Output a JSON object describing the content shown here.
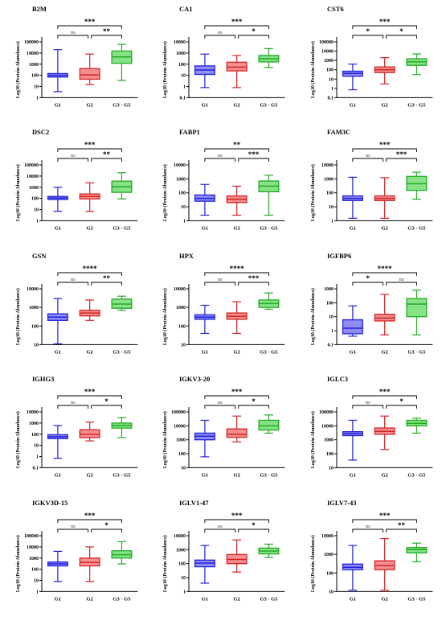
{
  "figure": {
    "ylabel": "Log10 (Protein Abundance)",
    "group_colors": {
      "G1": "#2222dd",
      "G2": "#d42222",
      "G3 - G5": "#22aa22"
    },
    "group_fills": {
      "G1": "#8c8cf2",
      "G2": "#f49090",
      "G3 - G5": "#86e286"
    }
  },
  "chart_data": [
    {
      "type": "box",
      "title": "B2M",
      "categories": [
        "G1",
        "G2",
        "G3 - G5"
      ],
      "yscale": "log",
      "ylim": [
        1,
        100000
      ],
      "yticks": [
        "1",
        "10",
        "100",
        "1000",
        "10000",
        "100000"
      ],
      "boxes": [
        {
          "min": 3.5,
          "q1": 70,
          "median": 100,
          "q3": 145,
          "max": 20000
        },
        {
          "min": 15,
          "q1": 45,
          "median": 110,
          "q3": 400,
          "max": 8000
        },
        {
          "min": 35,
          "q1": 1200,
          "median": 4500,
          "q3": 15000,
          "max": 60000
        }
      ],
      "brackets": [
        {
          "from": 0,
          "to": 2,
          "label": "***"
        },
        {
          "from": 0,
          "to": 1,
          "label": "ns"
        },
        {
          "from": 1,
          "to": 2,
          "label": "**"
        }
      ]
    },
    {
      "type": "box",
      "title": "CA1",
      "categories": [
        "G1",
        "G2",
        "G3 - G5"
      ],
      "yscale": "log",
      "ylim": [
        0.1,
        10000
      ],
      "yticks": [
        "0.1",
        "1",
        "10",
        "100",
        "1000",
        "10000"
      ],
      "boxes": [
        {
          "min": 0.8,
          "q1": 12,
          "median": 30,
          "q3": 70,
          "max": 800
        },
        {
          "min": 0.8,
          "q1": 25,
          "median": 55,
          "q3": 150,
          "max": 600
        },
        {
          "min": 50,
          "q1": 160,
          "median": 300,
          "q3": 600,
          "max": 2500
        }
      ],
      "brackets": [
        {
          "from": 0,
          "to": 2,
          "label": "***"
        },
        {
          "from": 0,
          "to": 1,
          "label": "ns"
        },
        {
          "from": 1,
          "to": 2,
          "label": "*"
        }
      ]
    },
    {
      "type": "box",
      "title": "CST6",
      "categories": [
        "G1",
        "G2",
        "G3 - G5"
      ],
      "yscale": "log",
      "ylim": [
        0.1,
        100000
      ],
      "yticks": [
        "0.1",
        "1",
        "10",
        "100",
        "1000",
        "10000",
        "100000"
      ],
      "boxes": [
        {
          "min": 0.7,
          "q1": 20,
          "median": 40,
          "q3": 70,
          "max": 400
        },
        {
          "min": 3,
          "q1": 50,
          "median": 100,
          "q3": 200,
          "max": 2000
        },
        {
          "min": 30,
          "q1": 300,
          "median": 700,
          "q3": 1500,
          "max": 5000
        }
      ],
      "brackets": [
        {
          "from": 0,
          "to": 2,
          "label": "***"
        },
        {
          "from": 0,
          "to": 1,
          "label": "*"
        },
        {
          "from": 1,
          "to": 2,
          "label": "*"
        }
      ]
    },
    {
      "type": "box",
      "title": "DSC2",
      "categories": [
        "G1",
        "G2",
        "G3 - G5"
      ],
      "yscale": "log",
      "ylim": [
        1,
        100000
      ],
      "yticks": [
        "1",
        "10",
        "100",
        "1000",
        "10000",
        "100000"
      ],
      "boxes": [
        {
          "min": 7,
          "q1": 80,
          "median": 110,
          "q3": 150,
          "max": 1000
        },
        {
          "min": 7,
          "q1": 90,
          "median": 150,
          "q3": 250,
          "max": 2500
        },
        {
          "min": 90,
          "q1": 350,
          "median": 1100,
          "q3": 3500,
          "max": 20000
        }
      ],
      "brackets": [
        {
          "from": 0,
          "to": 2,
          "label": "***"
        },
        {
          "from": 0,
          "to": 1,
          "label": "ns"
        },
        {
          "from": 1,
          "to": 2,
          "label": "**"
        }
      ]
    },
    {
      "type": "box",
      "title": "FABP1",
      "categories": [
        "G1",
        "G2",
        "G3 - G5"
      ],
      "yscale": "log",
      "ylim": [
        1,
        10000
      ],
      "yticks": [
        "1",
        "10",
        "100",
        "1000",
        "10000"
      ],
      "boxes": [
        {
          "min": 2.5,
          "q1": 25,
          "median": 40,
          "q3": 70,
          "max": 400
        },
        {
          "min": 2.5,
          "q1": 20,
          "median": 35,
          "q3": 60,
          "max": 300
        },
        {
          "min": 2.5,
          "q1": 120,
          "median": 300,
          "q3": 700,
          "max": 1800
        }
      ],
      "brackets": [
        {
          "from": 0,
          "to": 2,
          "label": "**"
        },
        {
          "from": 0,
          "to": 1,
          "label": "ns"
        },
        {
          "from": 1,
          "to": 2,
          "label": "***"
        }
      ]
    },
    {
      "type": "box",
      "title": "FAM3C",
      "categories": [
        "G1",
        "G2",
        "G3 - G5"
      ],
      "yscale": "log",
      "ylim": [
        1,
        10000
      ],
      "yticks": [
        "1",
        "10",
        "100",
        "1000",
        "10000"
      ],
      "boxes": [
        {
          "min": 1.5,
          "q1": 28,
          "median": 40,
          "q3": 60,
          "max": 1300
        },
        {
          "min": 1.5,
          "q1": 28,
          "median": 40,
          "q3": 60,
          "max": 1200
        },
        {
          "min": 35,
          "q1": 150,
          "median": 450,
          "q3": 1500,
          "max": 3000
        }
      ],
      "brackets": [
        {
          "from": 0,
          "to": 2,
          "label": "***"
        },
        {
          "from": 0,
          "to": 1,
          "label": "ns"
        },
        {
          "from": 1,
          "to": 2,
          "label": "***"
        }
      ]
    },
    {
      "type": "box",
      "title": "GSN",
      "categories": [
        "G1",
        "G2",
        "G3 - G5"
      ],
      "yscale": "log",
      "ylim": [
        10,
        10000
      ],
      "yticks": [
        "10",
        "100",
        "1000",
        "10000"
      ],
      "boxes": [
        {
          "min": 11,
          "q1": 200,
          "median": 300,
          "q3": 450,
          "max": 3000
        },
        {
          "min": 200,
          "q1": 350,
          "median": 500,
          "q3": 700,
          "max": 2500
        },
        {
          "min": 700,
          "q1": 900,
          "median": 1500,
          "q3": 2800,
          "max": 4000
        }
      ],
      "brackets": [
        {
          "from": 0,
          "to": 2,
          "label": "****"
        },
        {
          "from": 0,
          "to": 1,
          "label": "ns"
        },
        {
          "from": 1,
          "to": 2,
          "label": "**"
        }
      ]
    },
    {
      "type": "box",
      "title": "HPX",
      "categories": [
        "G1",
        "G2",
        "G3 - G5"
      ],
      "yscale": "log",
      "ylim": [
        10,
        10000
      ],
      "yticks": [
        "10",
        "100",
        "1000",
        "10000"
      ],
      "boxes": [
        {
          "min": 40,
          "q1": 230,
          "median": 300,
          "q3": 400,
          "max": 1300
        },
        {
          "min": 40,
          "q1": 230,
          "median": 330,
          "q3": 500,
          "max": 2000
        },
        {
          "min": 800,
          "q1": 1000,
          "median": 1600,
          "q3": 2500,
          "max": 6000
        }
      ],
      "brackets": [
        {
          "from": 0,
          "to": 2,
          "label": "****"
        },
        {
          "from": 0,
          "to": 1,
          "label": "ns"
        },
        {
          "from": 1,
          "to": 2,
          "label": "***"
        }
      ]
    },
    {
      "type": "box",
      "title": "IGFBP6",
      "categories": [
        "G1",
        "G2",
        "G3 - G5"
      ],
      "yscale": "log",
      "ylim": [
        0.1,
        1000
      ],
      "yticks": [
        "0.1",
        "1",
        "10",
        "100",
        "1000"
      ],
      "boxes": [
        {
          "min": 0.4,
          "q1": 0.6,
          "median": 1.5,
          "q3": 6,
          "max": 60
        },
        {
          "min": 0.5,
          "q1": 5,
          "median": 8,
          "q3": 15,
          "max": 400
        },
        {
          "min": 0.5,
          "q1": 10,
          "median": 80,
          "q3": 200,
          "max": 800
        }
      ],
      "brackets": [
        {
          "from": 0,
          "to": 2,
          "label": "****"
        },
        {
          "from": 0,
          "to": 1,
          "label": "*"
        },
        {
          "from": 1,
          "to": 2,
          "label": "ns"
        }
      ]
    },
    {
      "type": "box",
      "title": "IGHG3",
      "categories": [
        "G1",
        "G2",
        "G3 - G5"
      ],
      "yscale": "log",
      "ylim": [
        0.1,
        10000
      ],
      "yticks": [
        "0.1",
        "1",
        "10",
        "100",
        "1000",
        "10000"
      ],
      "boxes": [
        {
          "min": 0.7,
          "q1": 40,
          "median": 60,
          "q3": 90,
          "max": 600
        },
        {
          "min": 25,
          "q1": 50,
          "median": 100,
          "q3": 250,
          "max": 1200
        },
        {
          "min": 50,
          "q1": 350,
          "median": 600,
          "q3": 1000,
          "max": 3000
        }
      ],
      "brackets": [
        {
          "from": 0,
          "to": 2,
          "label": "***"
        },
        {
          "from": 0,
          "to": 1,
          "label": "ns"
        },
        {
          "from": 1,
          "to": 2,
          "label": "*"
        }
      ]
    },
    {
      "type": "box",
      "title": "IGKV3-20",
      "categories": [
        "G1",
        "G2",
        "G3 - G5"
      ],
      "yscale": "log",
      "ylim": [
        10,
        100000
      ],
      "yticks": [
        "10",
        "100",
        "1000",
        "10000",
        "100000"
      ],
      "boxes": [
        {
          "min": 60,
          "q1": 1000,
          "median": 1800,
          "q3": 3000,
          "max": 25000
        },
        {
          "min": 700,
          "q1": 1500,
          "median": 2500,
          "q3": 6000,
          "max": 50000
        },
        {
          "min": 3000,
          "q1": 5000,
          "median": 10000,
          "q3": 25000,
          "max": 60000
        }
      ],
      "brackets": [
        {
          "from": 0,
          "to": 2,
          "label": "***"
        },
        {
          "from": 0,
          "to": 1,
          "label": "ns"
        },
        {
          "from": 1,
          "to": 2,
          "label": "*"
        }
      ]
    },
    {
      "type": "box",
      "title": "IGLC3",
      "categories": [
        "G1",
        "G2",
        "G3 - G5"
      ],
      "yscale": "log",
      "ylim": [
        10,
        100000
      ],
      "yticks": [
        "10",
        "100",
        "1000",
        "10000",
        "100000"
      ],
      "boxes": [
        {
          "min": 35,
          "q1": 2000,
          "median": 2800,
          "q3": 3800,
          "max": 25000
        },
        {
          "min": 200,
          "q1": 2500,
          "median": 4000,
          "q3": 7000,
          "max": 50000
        },
        {
          "min": 3000,
          "q1": 10000,
          "median": 15000,
          "q3": 25000,
          "max": 35000
        }
      ],
      "brackets": [
        {
          "from": 0,
          "to": 2,
          "label": "***"
        },
        {
          "from": 0,
          "to": 1,
          "label": "ns"
        },
        {
          "from": 1,
          "to": 2,
          "label": "*"
        }
      ]
    },
    {
      "type": "box",
      "title": "IGKV3D-15",
      "categories": [
        "G1",
        "G2",
        "G3 - G5"
      ],
      "yscale": "log",
      "ylim": [
        1,
        100000
      ],
      "yticks": [
        "1",
        "10",
        "100",
        "1000",
        "10000",
        "100000"
      ],
      "boxes": [
        {
          "min": 8,
          "q1": 200,
          "median": 300,
          "q3": 450,
          "max": 4000
        },
        {
          "min": 8,
          "q1": 200,
          "median": 400,
          "q3": 1000,
          "max": 10000
        },
        {
          "min": 300,
          "q1": 1000,
          "median": 2000,
          "q3": 4500,
          "max": 30000
        }
      ],
      "brackets": [
        {
          "from": 0,
          "to": 2,
          "label": "***"
        },
        {
          "from": 0,
          "to": 1,
          "label": "ns"
        },
        {
          "from": 1,
          "to": 2,
          "label": "*"
        }
      ]
    },
    {
      "type": "box",
      "title": "IGLV1-47",
      "categories": [
        "G1",
        "G2",
        "G3 - G5"
      ],
      "yscale": "log",
      "ylim": [
        1,
        10000
      ],
      "yticks": [
        "1",
        "10",
        "100",
        "1000",
        "10000"
      ],
      "boxes": [
        {
          "min": 4,
          "q1": 60,
          "median": 110,
          "q3": 180,
          "max": 2000
        },
        {
          "min": 25,
          "q1": 100,
          "median": 200,
          "q3": 450,
          "max": 5000
        },
        {
          "min": 280,
          "q1": 500,
          "median": 800,
          "q3": 1300,
          "max": 2500
        }
      ],
      "brackets": [
        {
          "from": 0,
          "to": 2,
          "label": "***"
        },
        {
          "from": 0,
          "to": 1,
          "label": "ns"
        },
        {
          "from": 1,
          "to": 2,
          "label": "*"
        }
      ]
    },
    {
      "type": "box",
      "title": "IGLV7-43",
      "categories": [
        "G1",
        "G2",
        "G3 - G5"
      ],
      "yscale": "log",
      "ylim": [
        10,
        10000
      ],
      "yticks": [
        "10",
        "100",
        "1000",
        "10000"
      ],
      "boxes": [
        {
          "min": 12,
          "q1": 150,
          "median": 200,
          "q3": 300,
          "max": 3000
        },
        {
          "min": 12,
          "q1": 150,
          "median": 250,
          "q3": 450,
          "max": 7000
        },
        {
          "min": 400,
          "q1": 1200,
          "median": 1800,
          "q3": 2300,
          "max": 4000
        }
      ],
      "brackets": [
        {
          "from": 0,
          "to": 2,
          "label": "***"
        },
        {
          "from": 0,
          "to": 1,
          "label": "ns"
        },
        {
          "from": 1,
          "to": 2,
          "label": "**"
        }
      ]
    }
  ]
}
